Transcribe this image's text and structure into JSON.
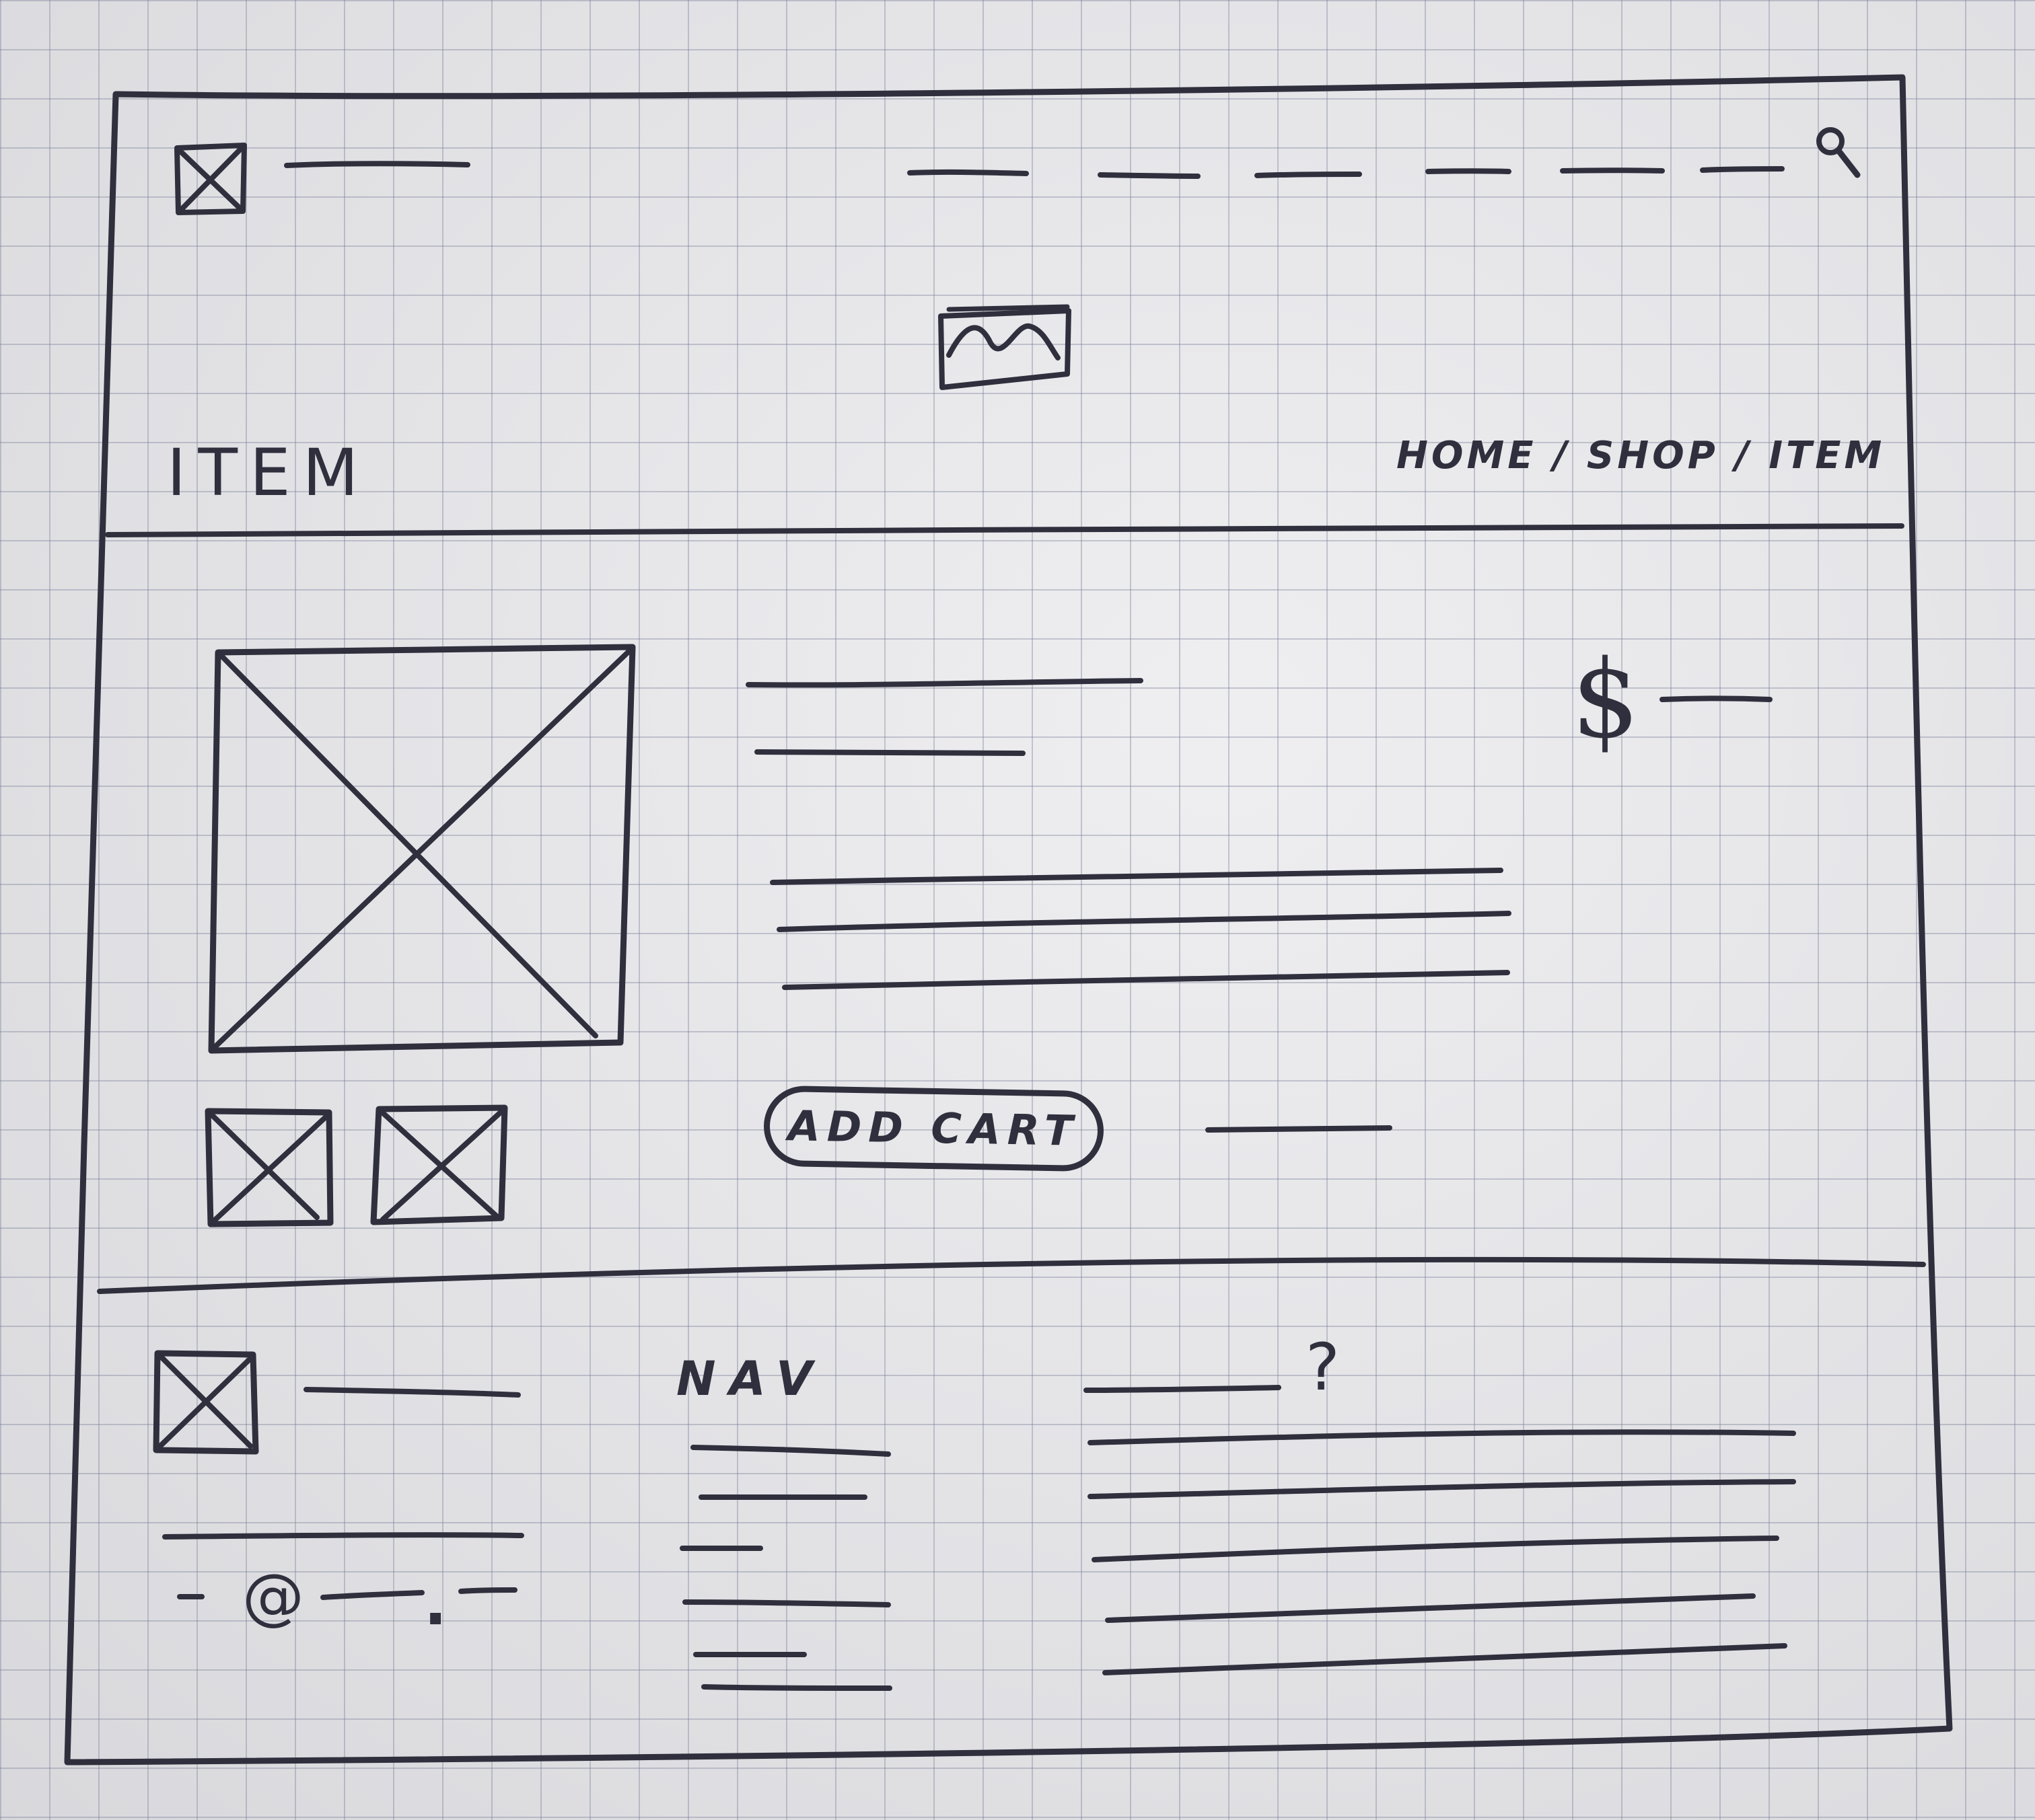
{
  "header": {
    "page_title": "ITEM",
    "breadcrumb": "HOME / SHOP / ITEM",
    "icons": {
      "logo": "image-placeholder-icon",
      "search": "search-icon",
      "hero": "image-icon"
    }
  },
  "product": {
    "price_symbol": "$",
    "add_to_cart_label": "ADD CART",
    "icons": {
      "main_image": "image-placeholder-icon",
      "thumbnail": "image-placeholder-icon"
    }
  },
  "footer": {
    "nav_heading": "NAV",
    "email_at": "@",
    "email_dot": ".",
    "faq_mark": "?",
    "icons": {
      "logo": "image-placeholder-icon"
    }
  },
  "colors": {
    "ink": "#2f2f3d",
    "paper": "#e6e6ea",
    "grid": "#787d96"
  }
}
